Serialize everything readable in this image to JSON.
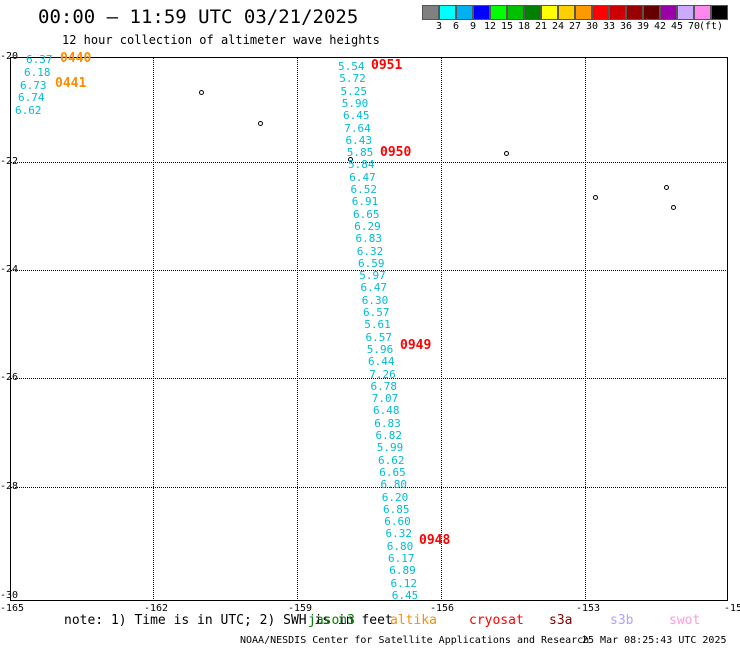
{
  "title": "00:00 — 11:59 UTC 03/21/2025",
  "subtitle": "12 hour collection of altimeter wave heights",
  "colorbar": {
    "colors": [
      "#808080",
      "#00ffff",
      "#00b0f0",
      "#0000ff",
      "#00ff00",
      "#00c000",
      "#008000",
      "#ffff00",
      "#ffd000",
      "#ff9900",
      "#ff0000",
      "#cc0000",
      "#990000",
      "#660000",
      "#9900aa",
      "#ccaaff",
      "#ff88ee",
      "#000000"
    ],
    "labels": [
      "3",
      "6",
      "9",
      "12",
      "15",
      "18",
      "21",
      "24",
      "27",
      "30",
      "33",
      "36",
      "39",
      "42",
      "45",
      "70",
      "(ft)"
    ]
  },
  "axes": {
    "lat_labels": [
      "-20",
      "-22",
      "-24",
      "-26",
      "-28",
      "-30"
    ],
    "lon_labels": [
      "-165",
      "-162",
      "-159",
      "-156",
      "-153",
      "-15"
    ]
  },
  "wave_heights_left": [
    "6.37",
    "6.18",
    "6.73",
    "6.74",
    "6.62"
  ],
  "wave_heights_track": [
    "5.54",
    "5.72",
    "5.25",
    "5.90",
    "6.45",
    "7.64",
    "6.43",
    "5.85",
    "5.84",
    "6.47",
    "6.52",
    "6.91",
    "6.65",
    "6.29",
    "6.83",
    "6.32",
    "6.59",
    "5.97",
    "6.47",
    "6.30",
    "6.57",
    "5.61",
    "6.57",
    "5.96",
    "6.44",
    "7.26",
    "6.78",
    "7.07",
    "6.48",
    "6.83",
    "6.82",
    "5.99",
    "6.62",
    "6.65",
    "6.80",
    "6.20",
    "6.85",
    "6.60",
    "6.32",
    "6.80",
    "6.17",
    "6.89",
    "6.12",
    "6.45"
  ],
  "time_labels": {
    "t0440": "0440",
    "t0441": "0441",
    "t0951": "0951",
    "t0950": "0950",
    "t0949": "0949",
    "t0948": "0948"
  },
  "colors": {
    "time_red": "#ff0000",
    "time_orange": "#ff8c00",
    "wave_cyan": "#00bcd4"
  },
  "footer": {
    "note": "note: 1) Time is in UTC; 2) SWH is in feet",
    "satellites": [
      {
        "name": "jason3",
        "color": "#008000"
      },
      {
        "name": "altika",
        "color": "#ff8c00"
      },
      {
        "name": "cryosat",
        "color": "#ff0000"
      },
      {
        "name": "s3a",
        "color": "#800000"
      },
      {
        "name": "s3b",
        "color": "#b0a0ff"
      },
      {
        "name": "swot",
        "color": "#ff99dd"
      }
    ],
    "credit": "NOAA/NESDIS Center for Satellite Applications and Research",
    "timestamp": "25 Mar 08:25:43 UTC 2025"
  }
}
